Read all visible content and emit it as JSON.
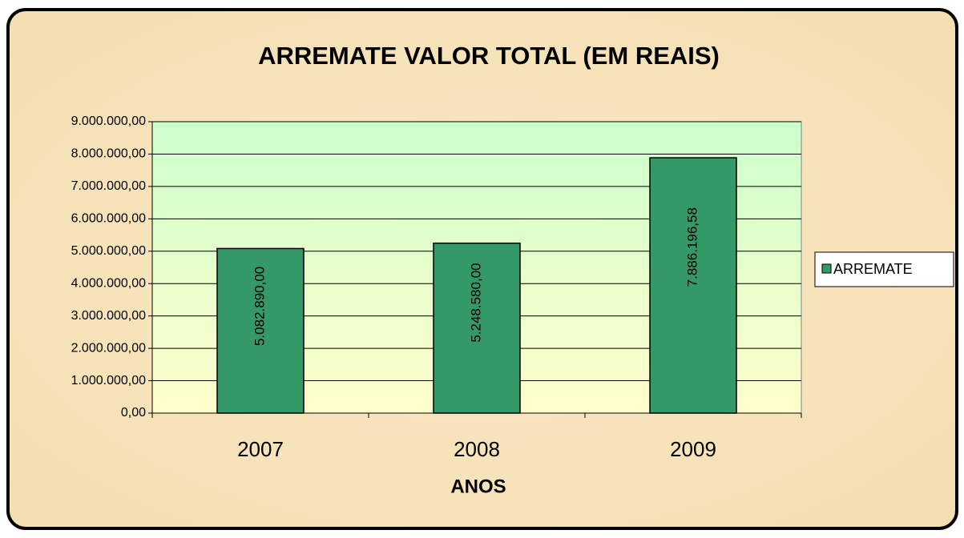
{
  "chart_data": {
    "type": "bar",
    "title": "ARREMATE VALOR TOTAL (EM REAIS)",
    "xlabel": "ANOS",
    "categories": [
      "2007",
      "2008",
      "2009"
    ],
    "series": [
      {
        "name": "ARREMATE",
        "color": "#339966",
        "values": [
          5082890,
          5248580,
          7886196.58
        ],
        "value_labels": [
          "5.082.890,00",
          "5.248.580,00",
          "7.886.196,58"
        ]
      }
    ],
    "ylim": [
      0,
      9000000
    ],
    "yticks": [
      {
        "value": 0,
        "label": "0,00"
      },
      {
        "value": 1000000,
        "label": "1.000.000,00"
      },
      {
        "value": 2000000,
        "label": "2.000.000,00"
      },
      {
        "value": 3000000,
        "label": "3.000.000,00"
      },
      {
        "value": 4000000,
        "label": "4.000.000,00"
      },
      {
        "value": 5000000,
        "label": "5.000.000,00"
      },
      {
        "value": 6000000,
        "label": "6.000.000,00"
      },
      {
        "value": 7000000,
        "label": "7.000.000,00"
      },
      {
        "value": 8000000,
        "label": "8.000.000,00"
      },
      {
        "value": 9000000,
        "label": "9.000.000,00"
      }
    ],
    "grid": true,
    "legend": "right"
  }
}
